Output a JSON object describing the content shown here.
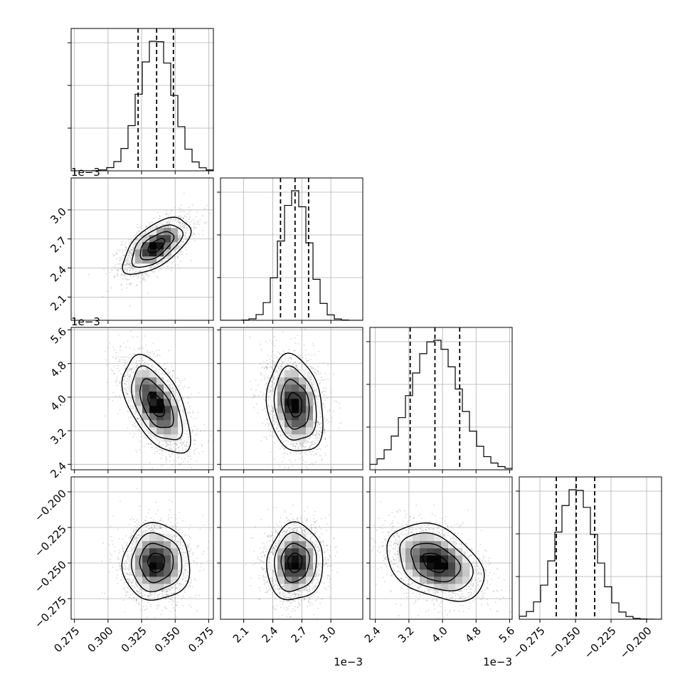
{
  "chart_data": {
    "type": "corner",
    "grid": true,
    "params": [
      {
        "name": "",
        "range": [
          0.2725,
          0.3785
        ],
        "ticks": [
          0.275,
          0.3,
          0.325,
          0.35,
          0.375
        ],
        "tick_labels": [
          "0.275",
          "0.300",
          "0.325",
          "0.350",
          "0.375"
        ],
        "scale_label": "",
        "quantiles": [
          0.3224,
          0.3362,
          0.3487
        ],
        "mean": 0.336,
        "sd": 0.0125
      },
      {
        "name": "",
        "range": [
          1.86,
          3.33
        ],
        "ticks": [
          2.1,
          2.4,
          2.7,
          3.0
        ],
        "tick_labels": [
          "2.1",
          "2.4",
          "2.7",
          "3.0"
        ],
        "scale_label": "1e−3",
        "quantiles": [
          2.48,
          2.63,
          2.77
        ],
        "mean": 2.63,
        "sd": 0.145
      },
      {
        "name": "",
        "range": [
          2.27,
          5.66
        ],
        "ticks": [
          2.4,
          3.2,
          4.0,
          4.8,
          5.6
        ],
        "tick_labels": [
          "2.4",
          "3.2",
          "4.0",
          "4.8",
          "5.6"
        ],
        "scale_label": "1e−3",
        "quantiles": [
          3.23,
          3.82,
          4.41
        ],
        "mean": 3.82,
        "sd": 0.58
      },
      {
        "name": "",
        "range": [
          -0.2895,
          -0.1895
        ],
        "ticks": [
          -0.275,
          -0.25,
          -0.225,
          -0.2
        ],
        "tick_labels": [
          "−0.275",
          "−0.250",
          "−0.225",
          "−0.200"
        ],
        "scale_label": "",
        "quantiles": [
          -0.2635,
          -0.2495,
          -0.2365
        ],
        "mean": -0.2497,
        "sd": 0.0135
      }
    ],
    "correlations": {
      "1-0": 0.6,
      "2-0": -0.55,
      "2-1": -0.2,
      "3-0": 0.0,
      "3-1": 0.05,
      "3-2": -0.35
    },
    "contour_sigmas": [
      0.5,
      1.0,
      1.5,
      2.0
    ]
  }
}
